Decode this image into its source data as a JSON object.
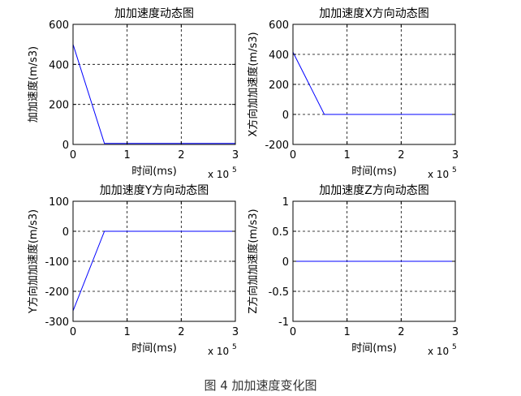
{
  "caption": "图 4  加加速度变化图",
  "chart_data": [
    {
      "type": "line",
      "title": "加加速度动态图",
      "xlabel": "时间(ms)",
      "ylabel": "加加速度(m/s3)",
      "x_exponent_label": "x 10",
      "x_exponent_power": "5",
      "xlim": [
        0,
        3
      ],
      "ylim": [
        0,
        600
      ],
      "xticks": [
        "0",
        "1",
        "2",
        "3"
      ],
      "yticks": [
        "0",
        "200",
        "400",
        "600"
      ],
      "grid": true,
      "series": [
        {
          "color": "#0000ff",
          "x": [
            0,
            0.58,
            3
          ],
          "y": [
            500,
            5,
            5
          ]
        }
      ]
    },
    {
      "type": "line",
      "title": "加加速度X方向动态图",
      "xlabel": "时间(ms)",
      "ylabel": "X方向加加速度(m/s3)",
      "x_exponent_label": "x 10",
      "x_exponent_power": "5",
      "xlim": [
        0,
        3
      ],
      "ylim": [
        -200,
        600
      ],
      "xticks": [
        "0",
        "1",
        "2",
        "3"
      ],
      "yticks": [
        "-200",
        "0",
        "200",
        "400",
        "600"
      ],
      "grid": true,
      "series": [
        {
          "color": "#0000ff",
          "x": [
            0,
            0.58,
            3
          ],
          "y": [
            415,
            0,
            0
          ]
        }
      ]
    },
    {
      "type": "line",
      "title": "加加速度Y方向动态图",
      "xlabel": "时间(ms)",
      "ylabel": "Y方向加加速度(m/s3)",
      "x_exponent_label": "x 10",
      "x_exponent_power": "5",
      "xlim": [
        0,
        3
      ],
      "ylim": [
        -300,
        100
      ],
      "xticks": [
        "0",
        "1",
        "2",
        "3"
      ],
      "yticks": [
        "-300",
        "-200",
        "-100",
        "0",
        "100"
      ],
      "grid": true,
      "series": [
        {
          "color": "#0000ff",
          "x": [
            0,
            0.58,
            3
          ],
          "y": [
            -265,
            0,
            0
          ]
        }
      ]
    },
    {
      "type": "line",
      "title": "加加速度Z方向动态图",
      "xlabel": "时间(ms)",
      "ylabel": "Z方向加加速度(m/s3)",
      "x_exponent_label": "x 10",
      "x_exponent_power": "5",
      "xlim": [
        0,
        3
      ],
      "ylim": [
        -1,
        1
      ],
      "xticks": [
        "0",
        "1",
        "2",
        "3"
      ],
      "yticks": [
        "-1",
        "-0.5",
        "0",
        "0.5",
        "1"
      ],
      "grid": true,
      "series": [
        {
          "color": "#0000ff",
          "x": [
            0,
            3
          ],
          "y": [
            0,
            0
          ]
        }
      ]
    }
  ]
}
